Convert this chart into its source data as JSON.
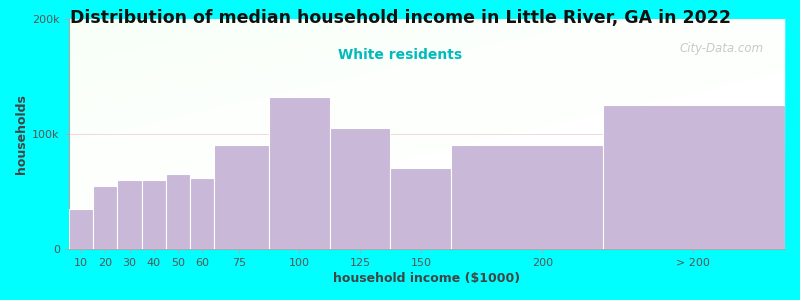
{
  "title": "Distribution of median household income in Little River, GA in 2022",
  "subtitle": "White residents",
  "xlabel": "household income ($1000)",
  "ylabel": "households",
  "background_color": "#00FFFF",
  "bar_color": "#c9b8d8",
  "title_fontsize": 12.5,
  "subtitle_fontsize": 10,
  "subtitle_color": "#00BBBB",
  "categories": [
    "10",
    "20",
    "30",
    "40",
    "50",
    "60",
    "75",
    "100",
    "125",
    "150",
    "200",
    "> 200"
  ],
  "values": [
    35000,
    55000,
    60000,
    60000,
    65000,
    62000,
    90000,
    132000,
    105000,
    70000,
    90000,
    125000
  ],
  "ylim": [
    0,
    200000
  ],
  "ytick_labels": [
    "0",
    "100k",
    "200k"
  ],
  "ytick_values": [
    0,
    100000,
    200000
  ],
  "watermark_text": "City-Data.com",
  "left_edges": [
    5,
    15,
    25,
    35,
    45,
    55,
    65,
    87.5,
    112.5,
    137.5,
    162.5,
    225
  ],
  "bar_widths": [
    10,
    10,
    10,
    10,
    10,
    10,
    22.5,
    25,
    25,
    25,
    62.5,
    75
  ],
  "tick_positions": [
    10,
    20,
    30,
    40,
    50,
    60,
    75,
    100,
    125,
    150,
    200,
    262
  ],
  "xlim": [
    5,
    300
  ]
}
